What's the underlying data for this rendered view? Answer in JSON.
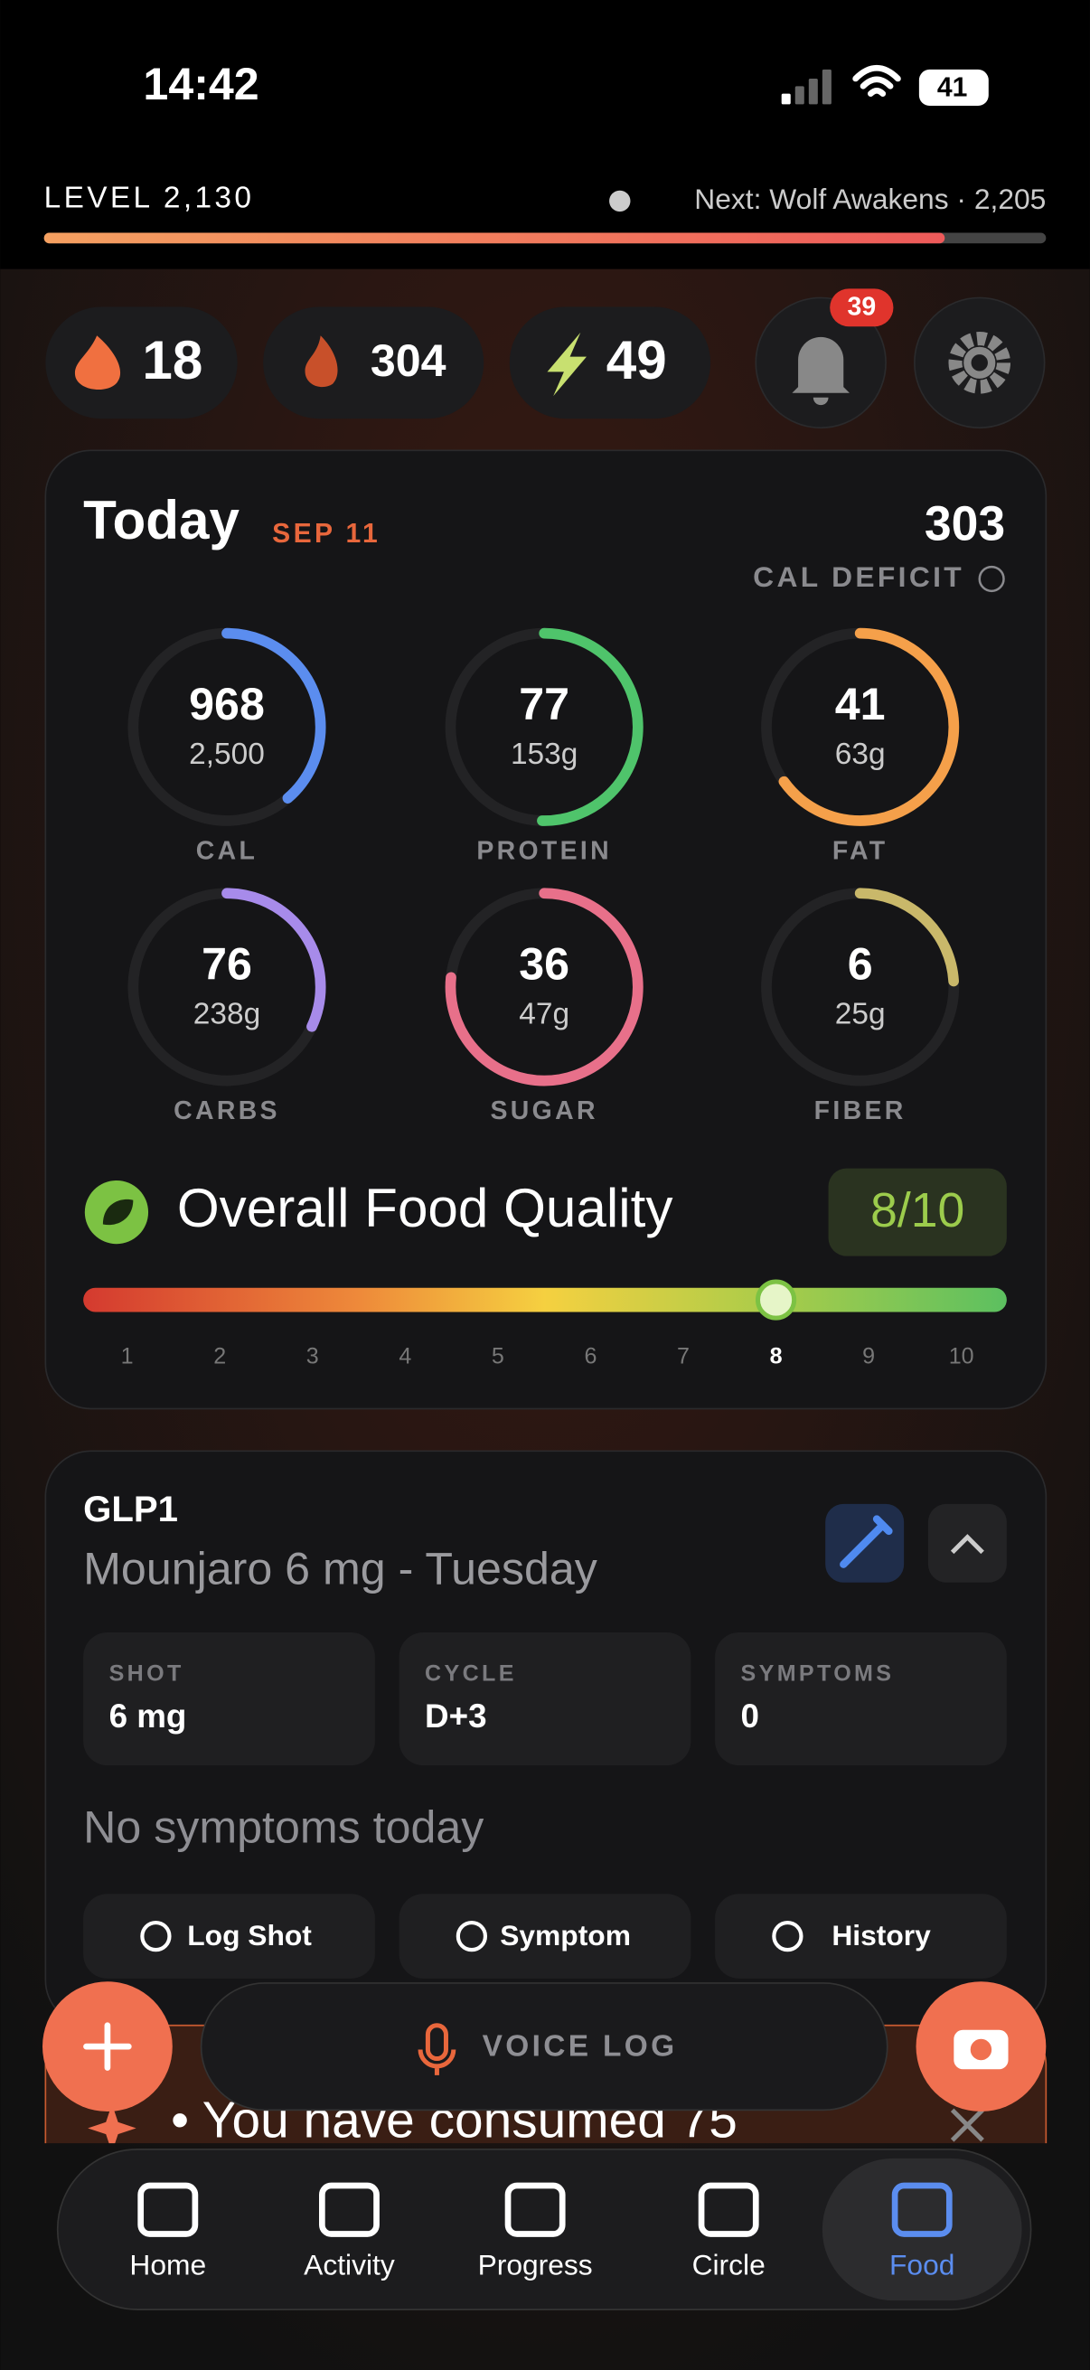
{
  "status_bar": {
    "time": "14:42",
    "battery": "41"
  },
  "level": {
    "label": "LEVEL 2,130",
    "next": "Next: Wolf Awakens · 2,205"
  },
  "stats": {
    "streak": "18",
    "burn": "304",
    "energy": "49",
    "notifications": "39"
  },
  "today": {
    "title": "Today",
    "date": "SEP 11",
    "deficit": "303",
    "deficit_label": "CAL DEFICIT"
  },
  "rings": [
    {
      "label": "CAL",
      "value": 968,
      "goal": {
        "value": 2500,
        "label": "2,500"
      },
      "color": "#5b8def"
    },
    {
      "label": "PROTEIN",
      "value": 77,
      "goal": {
        "value": 153,
        "label": "153g"
      },
      "color": "#4fc46b"
    },
    {
      "label": "FAT",
      "value": 41,
      "goal": {
        "value": 63,
        "label": "63g"
      },
      "color": "#f5a04a"
    },
    {
      "label": "CARBS",
      "value": 76,
      "goal": {
        "value": 238,
        "label": "238g"
      },
      "color": "#a78bea"
    },
    {
      "label": "SUGAR",
      "value": 36,
      "goal": {
        "value": 47,
        "label": "47g"
      },
      "color": "#e8708a"
    },
    {
      "label": "FIBER",
      "value": 6,
      "goal": {
        "value": 25,
        "label": "25g"
      },
      "color": "#c9b86a"
    }
  ],
  "quality": {
    "label": "Overall Food Quality",
    "score_label": "8/10",
    "score": 8,
    "scale": [
      1,
      2,
      3,
      4,
      5,
      6,
      7,
      8,
      9,
      10
    ]
  },
  "glp1": {
    "title": "GLP1",
    "subtitle": "Mounjaro 6 mg - Tuesday",
    "cards": [
      {
        "label": "SHOT",
        "value": "6 mg"
      },
      {
        "label": "CYCLE",
        "value": "D+3"
      },
      {
        "label": "SYMPTOMS",
        "value": "0"
      }
    ],
    "note": "No symptoms today",
    "buttons": [
      "Log Shot",
      "Symptom",
      "History"
    ]
  },
  "voice_log": "VOICE LOG",
  "banner": "• You have consumed 75",
  "nav": [
    "Home",
    "Activity",
    "Progress",
    "Circle",
    "Food"
  ]
}
